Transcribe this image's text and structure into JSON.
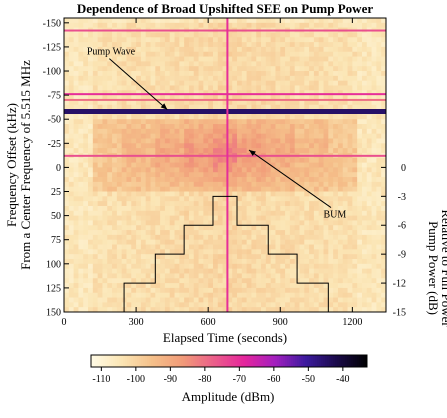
{
  "chart_data": {
    "type": "heatmap",
    "title": "Dependence of Broad Upshifted SEE on Pump Power",
    "xlabel": "Elapsed Time (seconds)",
    "ylabel_line1": "Frequency Offset (kHz)",
    "ylabel_line2": "From a Center Frequency of 5.515 MHz",
    "right_label_line1": "Pump Power (dB)",
    "right_label_line2": "Relative to Full Power",
    "xlim": [
      0,
      1340
    ],
    "ylim": [
      -155,
      150
    ],
    "x_ticks": [
      0,
      300,
      600,
      900,
      1200
    ],
    "x_tick_labels": [
      "0",
      "300",
      "600",
      "900",
      "1200"
    ],
    "y_ticks": [
      -150,
      -125,
      -100,
      -75,
      -50,
      -25,
      0,
      25,
      50,
      75,
      100,
      125,
      150
    ],
    "y_tick_labels": [
      "-150",
      "-125",
      "-100",
      "-75",
      "-50",
      "-25",
      "0",
      "25",
      "50",
      "75",
      "100",
      "125",
      "150"
    ],
    "power_ticks_db": [
      0,
      -3,
      -6,
      -9,
      -12,
      -15
    ],
    "power_tick_labels": [
      "0",
      "-3",
      "-6",
      "-9",
      "-12",
      "-15"
    ],
    "power_steps": [
      {
        "t_start": 120,
        "t_end": 250,
        "db": -15
      },
      {
        "t_start": 250,
        "t_end": 380,
        "db": -12
      },
      {
        "t_start": 380,
        "t_end": 500,
        "db": -9
      },
      {
        "t_start": 500,
        "t_end": 620,
        "db": -6
      },
      {
        "t_start": 620,
        "t_end": 720,
        "db": -3
      },
      {
        "t_start": 720,
        "t_end": 850,
        "db": -6
      },
      {
        "t_start": 850,
        "t_end": 970,
        "db": -9
      },
      {
        "t_start": 970,
        "t_end": 1100,
        "db": -12
      },
      {
        "t_start": 1100,
        "t_end": 1220,
        "db": -15
      }
    ],
    "horizontal_lines": [
      {
        "offset_khz": -142,
        "amplitude_dbm": -75
      },
      {
        "offset_khz": -76,
        "amplitude_dbm": -70
      },
      {
        "offset_khz": -70,
        "amplitude_dbm": -80
      },
      {
        "offset_khz": -58,
        "amplitude_dbm": -45
      },
      {
        "offset_khz": -12,
        "amplitude_dbm": -75
      }
    ],
    "vertical_line": {
      "time_s": 680,
      "amplitude_dbm": -70
    },
    "annotations": [
      {
        "text": "Pump Wave",
        "x": 95,
        "y": -117,
        "arrow_to": [
          430,
          -60
        ]
      },
      {
        "text": "BUM",
        "x": 1080,
        "y": 52,
        "arrow_to": [
          770,
          -18
        ]
      }
    ],
    "colorbar": {
      "label": "Amplitude (dBm)",
      "range": [
        -113,
        -33
      ],
      "ticks": [
        -110,
        -100,
        -90,
        -80,
        -70,
        -60,
        -50,
        -40
      ],
      "tick_labels": [
        "-110",
        "-100",
        "-90",
        "-80",
        "-70",
        "-60",
        "-50",
        "-40"
      ],
      "colormap": [
        "#fffbe6",
        "#fbe5b4",
        "#f5c08a",
        "#f19a78",
        "#eb5f8a",
        "#e5259c",
        "#a31fbf",
        "#3c1a9e",
        "#1a0a4a",
        "#000000"
      ]
    }
  }
}
